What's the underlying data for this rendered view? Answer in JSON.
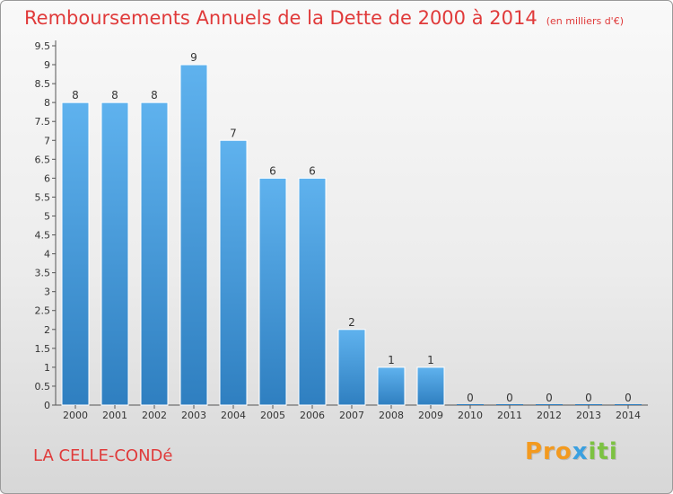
{
  "header": {
    "title": "Remboursements Annuels de la Dette de 2000 à 2014",
    "unit": "(en milliers d'€)"
  },
  "footer": {
    "town": "LA CELLE-CONDé",
    "brand_parts": [
      "Pro",
      "x",
      "iti"
    ]
  },
  "colors": {
    "title": "#e03a3a",
    "bar_top": "#5fb2ee",
    "bar_bottom": "#2f7fc0"
  },
  "chart_data": {
    "type": "bar",
    "categories": [
      "2000",
      "2001",
      "2002",
      "2003",
      "2004",
      "2005",
      "2006",
      "2007",
      "2008",
      "2009",
      "2010",
      "2011",
      "2012",
      "2013",
      "2014"
    ],
    "values": [
      8,
      8,
      8,
      9,
      7,
      6,
      6,
      2,
      1,
      1,
      0,
      0,
      0,
      0,
      0
    ],
    "data_labels": [
      "8",
      "8",
      "8",
      "9",
      "7",
      "6",
      "6",
      "2",
      "1",
      "1",
      "0",
      "0",
      "0",
      "0",
      "0"
    ],
    "y_ticks": [
      "0",
      "0.5",
      "1",
      "1.5",
      "2",
      "2.5",
      "3",
      "3.5",
      "4",
      "4.5",
      "5",
      "5.5",
      "6",
      "6.5",
      "7",
      "7.5",
      "8",
      "8.5",
      "9",
      "9.5"
    ],
    "ylim": [
      0,
      9.5
    ],
    "grid": false
  }
}
